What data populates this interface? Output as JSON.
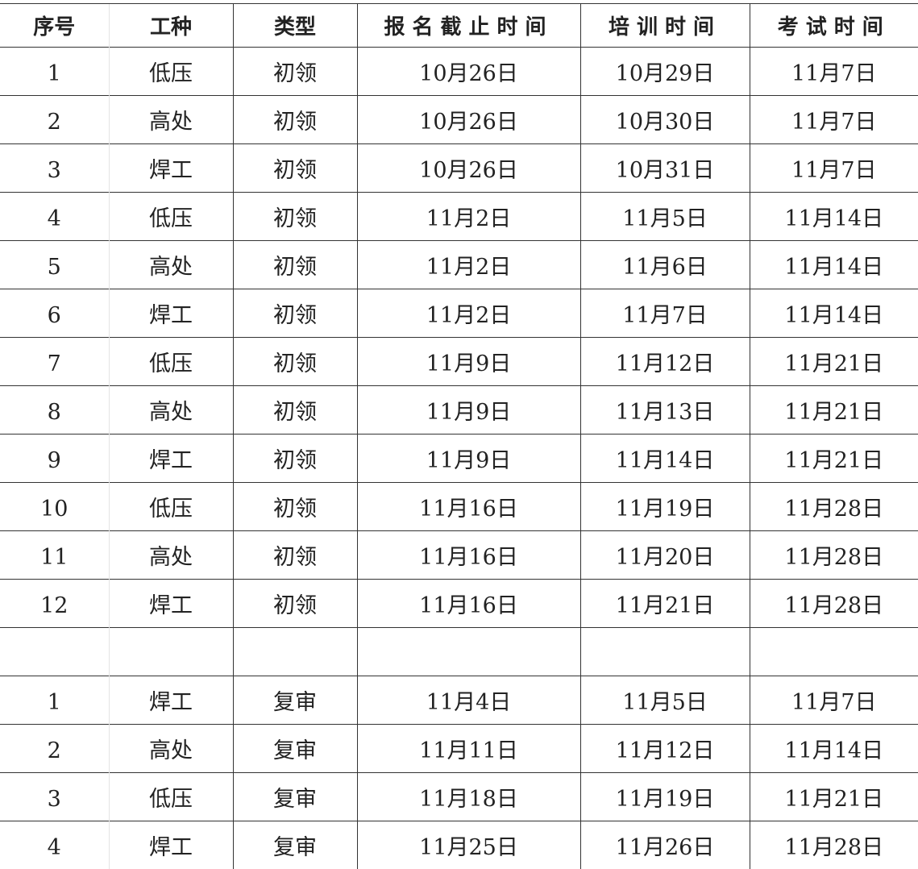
{
  "headers": [
    "序号",
    "工种",
    "类型",
    "报名截止时间",
    "培训时间",
    "考试时间"
  ],
  "initial_rows": [
    [
      "1",
      "低压",
      "初领",
      "10月26日",
      "10月29日",
      "11月7日"
    ],
    [
      "2",
      "高处",
      "初领",
      "10月26日",
      "10月30日",
      "11月7日"
    ],
    [
      "3",
      "焊工",
      "初领",
      "10月26日",
      "10月31日",
      "11月7日"
    ],
    [
      "4",
      "低压",
      "初领",
      "11月2日",
      "11月5日",
      "11月14日"
    ],
    [
      "5",
      "高处",
      "初领",
      "11月2日",
      "11月6日",
      "11月14日"
    ],
    [
      "6",
      "焊工",
      "初领",
      "11月2日",
      "11月7日",
      "11月14日"
    ],
    [
      "7",
      "低压",
      "初领",
      "11月9日",
      "11月12日",
      "11月21日"
    ],
    [
      "8",
      "高处",
      "初领",
      "11月9日",
      "11月13日",
      "11月21日"
    ],
    [
      "9",
      "焊工",
      "初领",
      "11月9日",
      "11月14日",
      "11月21日"
    ],
    [
      "10",
      "低压",
      "初领",
      "11月16日",
      "11月19日",
      "11月28日"
    ],
    [
      "11",
      "高处",
      "初领",
      "11月16日",
      "11月20日",
      "11月28日"
    ],
    [
      "12",
      "焊工",
      "初领",
      "11月16日",
      "11月21日",
      "11月28日"
    ]
  ],
  "review_rows": [
    [
      "1",
      "焊工",
      "复审",
      "11月4日",
      "11月5日",
      "11月7日"
    ],
    [
      "2",
      "高处",
      "复审",
      "11月11日",
      "11月12日",
      "11月14日"
    ],
    [
      "3",
      "低压",
      "复审",
      "11月18日",
      "11月19日",
      "11月21日"
    ],
    [
      "4",
      "焊工",
      "复审",
      "11月25日",
      "11月26日",
      "11月28日"
    ]
  ]
}
